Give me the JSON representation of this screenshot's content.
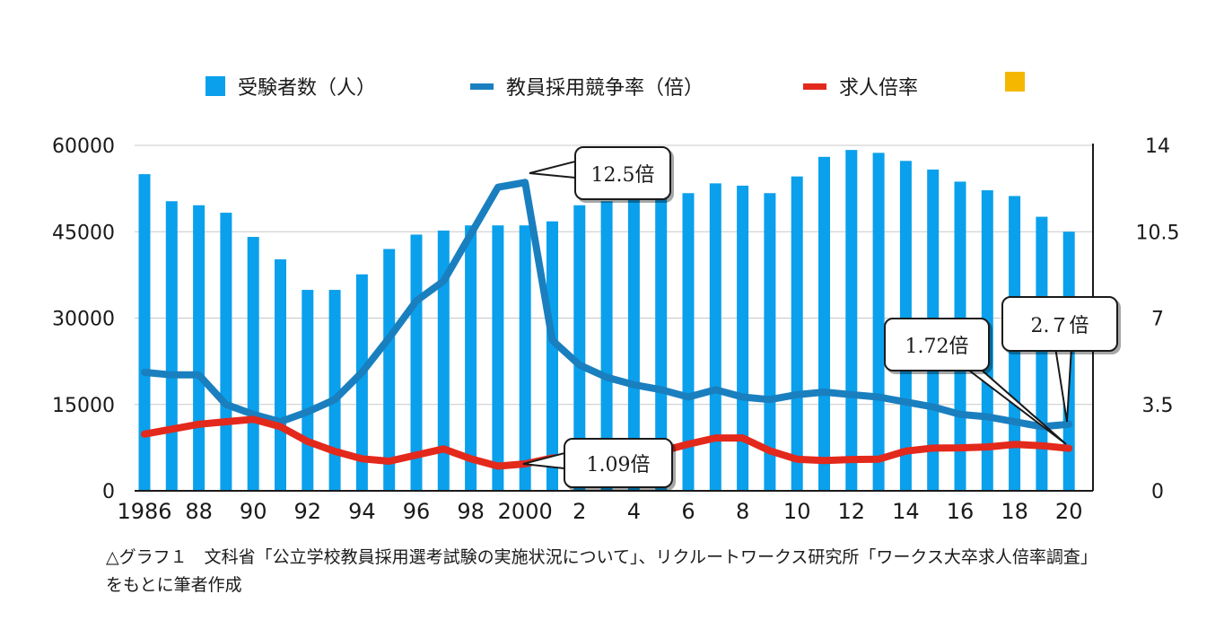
{
  "legend": {
    "applicants": "受験者数（人）",
    "competition": "教員採用競争率（倍）",
    "job_ratio": "求人倍率",
    "extra": ""
  },
  "colors": {
    "applicants": "#0aa0ec",
    "competition": "#1a7fbf",
    "job_ratio": "#e3291c",
    "extra": "#f5b800",
    "grid": "#c8c8c8",
    "axis": "#1a1a1a"
  },
  "callouts": {
    "peak": "12.5倍",
    "job_2000": "1.09倍",
    "job_2020": "1.72倍",
    "comp_2020": "2.７倍"
  },
  "caption": "△グラフ１　文科省「公立学校教員採用選考試験の実施状況について」、リクルートワークス研究所「ワークス大卒求人倍率調査」をもとに筆者作成",
  "chart_data": {
    "type": "bar",
    "x_tick_labels": [
      "1986",
      "88",
      "90",
      "92",
      "94",
      "96",
      "98",
      "2000",
      "2",
      "4",
      "6",
      "8",
      "10",
      "12",
      "14",
      "16",
      "18",
      "20"
    ],
    "years": [
      1986,
      1987,
      1988,
      1989,
      1990,
      1991,
      1992,
      1993,
      1994,
      1995,
      1996,
      1997,
      1998,
      1999,
      2000,
      2001,
      2002,
      2003,
      2004,
      2005,
      2006,
      2007,
      2008,
      2009,
      2010,
      2011,
      2012,
      2013,
      2014,
      2015,
      2016,
      2017,
      2018,
      2019,
      2020
    ],
    "y_left": {
      "ticks": [
        "0",
        "15000",
        "30000",
        "45000",
        "60000"
      ],
      "range": [
        0,
        60000
      ]
    },
    "y_right": {
      "ticks": [
        "0",
        "3.5",
        "7",
        "10.5",
        "14"
      ],
      "range": [
        0,
        14
      ]
    },
    "grid": true,
    "legend_position": "top",
    "series": [
      {
        "name": "受験者数（人）",
        "type": "bar",
        "axis": "left",
        "values": [
          55000,
          50300,
          49600,
          48300,
          44100,
          40200,
          34900,
          34900,
          37600,
          42000,
          44500,
          45200,
          46100,
          46100,
          46100,
          46800,
          49600,
          50300,
          51000,
          51800,
          51700,
          53400,
          53000,
          51700,
          54600,
          58000,
          59200,
          58700,
          57300,
          55800,
          53700,
          52200,
          51200,
          47600,
          45000
        ]
      },
      {
        "name": "教員採用競争率（倍）",
        "type": "line",
        "axis": "right",
        "values": [
          4.8,
          4.7,
          4.7,
          3.5,
          3.1,
          2.8,
          3.2,
          3.7,
          4.8,
          6.2,
          7.7,
          8.5,
          10.4,
          12.3,
          12.5,
          6.1,
          5.1,
          4.6,
          4.3,
          4.1,
          3.8,
          4.1,
          3.8,
          3.7,
          3.9,
          4.0,
          3.9,
          3.8,
          3.6,
          3.4,
          3.1,
          3.0,
          2.8,
          2.6,
          2.7
        ]
      },
      {
        "name": "求人倍率",
        "type": "line",
        "axis": "right",
        "values": [
          2.3,
          2.5,
          2.7,
          2.8,
          2.9,
          2.6,
          2.0,
          1.6,
          1.3,
          1.2,
          1.45,
          1.7,
          1.3,
          1.0,
          1.09,
          1.33,
          1.33,
          1.3,
          1.35,
          1.6,
          1.89,
          2.14,
          2.14,
          1.62,
          1.28,
          1.23,
          1.27,
          1.28,
          1.61,
          1.73,
          1.74,
          1.78,
          1.88,
          1.83,
          1.72
        ]
      }
    ]
  }
}
